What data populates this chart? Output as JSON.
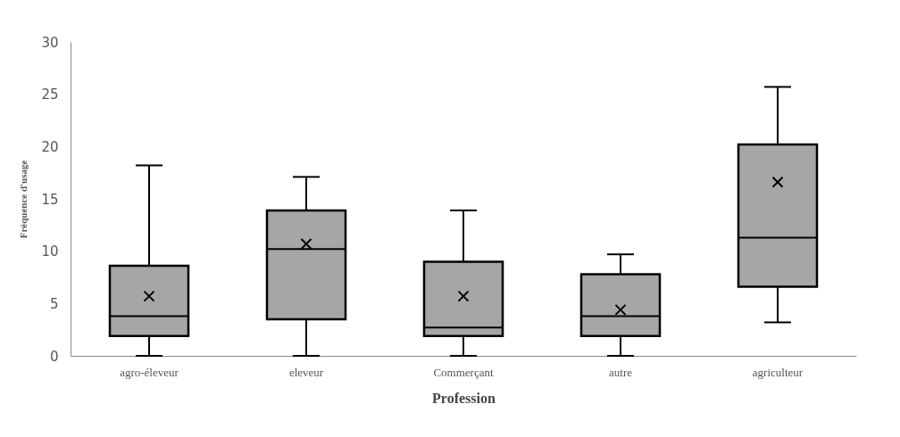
{
  "chart_data": {
    "type": "box",
    "xlabel": "Profession",
    "ylabel": "Fréquence d'usage",
    "categories": [
      "agro-éleveur",
      "eleveur",
      "Commerçant",
      "autre",
      "agriculteur"
    ],
    "boxes": [
      {
        "low": 0,
        "q1": 1.9,
        "median": 3.8,
        "q3": 8.6,
        "high": 18.2,
        "mean": 5.7
      },
      {
        "low": 0,
        "q1": 3.5,
        "median": 10.2,
        "q3": 13.9,
        "high": 17.1,
        "mean": 10.7
      },
      {
        "low": 0,
        "q1": 1.9,
        "median": 2.7,
        "q3": 9.0,
        "high": 13.9,
        "mean": 5.7
      },
      {
        "low": 0,
        "q1": 1.9,
        "median": 3.8,
        "q3": 7.8,
        "high": 9.7,
        "mean": 4.4
      },
      {
        "low": 3.2,
        "q1": 6.6,
        "median": 11.3,
        "q3": 20.2,
        "high": 25.7,
        "mean": 16.6
      }
    ],
    "color": "#a6a6a6",
    "ylim": [
      0,
      30
    ],
    "yticks": [
      0,
      5,
      10,
      15,
      20,
      25,
      30
    ],
    "grid": false,
    "marker": "cross"
  }
}
